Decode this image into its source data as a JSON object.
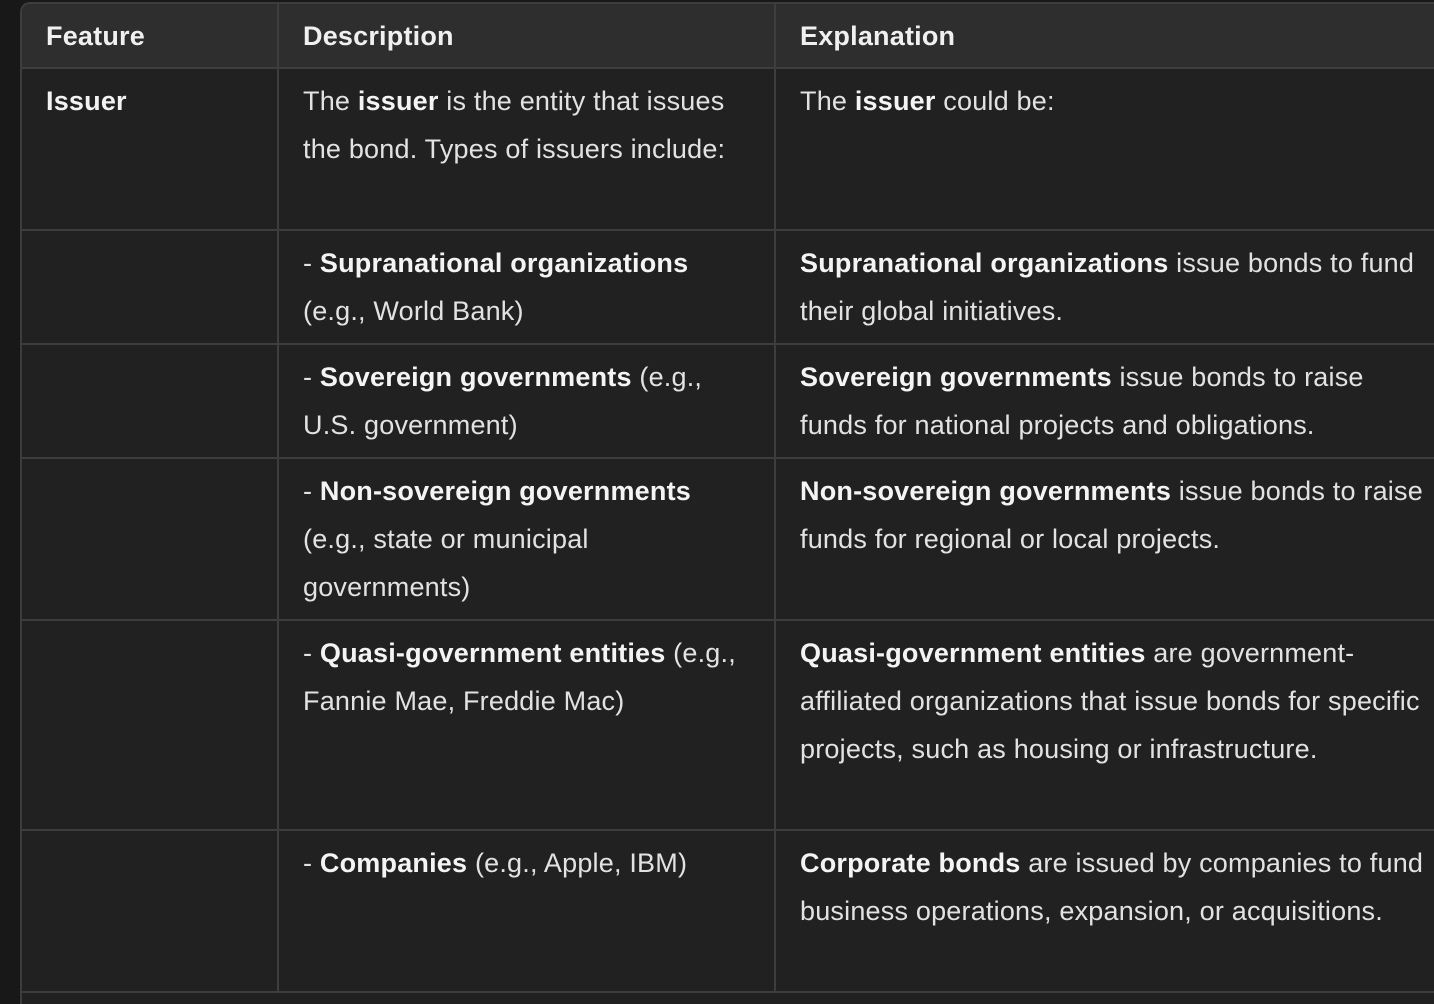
{
  "table": {
    "headers": [
      "Feature",
      "Description",
      "Explanation"
    ],
    "rows": [
      {
        "feature": "Issuer",
        "desc": {
          "prefix": "The ",
          "bold": "issuer",
          "rest": " is the entity that issues the bond. Types of issuers include:"
        },
        "expl": {
          "prefix": "The ",
          "bold": "issuer",
          "rest": " could be:"
        }
      },
      {
        "feature": "",
        "desc": {
          "prefix": "- ",
          "bold": "Supranational organizations",
          "rest": " (e.g., World Bank)"
        },
        "expl": {
          "prefix": "",
          "bold": "Supranational organizations",
          "rest": " issue bonds to fund their global initiatives."
        }
      },
      {
        "feature": "",
        "desc": {
          "prefix": "- ",
          "bold": "Sovereign governments",
          "rest": " (e.g., U.S. government)"
        },
        "expl": {
          "prefix": "",
          "bold": "Sovereign governments",
          "rest": " issue bonds to raise funds for national projects and obligations."
        }
      },
      {
        "feature": "",
        "desc": {
          "prefix": "- ",
          "bold": "Non-sovereign governments",
          "rest": " (e.g., state or municipal governments)"
        },
        "expl": {
          "prefix": "",
          "bold": "Non-sovereign governments",
          "rest": " issue bonds to raise funds for regional or local projects."
        }
      },
      {
        "feature": "",
        "desc": {
          "prefix": "- ",
          "bold": "Quasi-government entities",
          "rest": " (e.g., Fannie Mae, Freddie Mac)"
        },
        "expl": {
          "prefix": "",
          "bold": "Quasi-government entities",
          "rest": " are government-affiliated organizations that issue bonds for specific projects, such as housing or infrastructure."
        }
      },
      {
        "feature": "",
        "desc": {
          "prefix": "- ",
          "bold": "Companies",
          "rest": " (e.g., Apple, IBM)"
        },
        "expl": {
          "prefix": "",
          "bold": "Corporate bonds",
          "rest": " are issued by companies to fund business operations, expansion, or acquisitions."
        }
      }
    ]
  }
}
